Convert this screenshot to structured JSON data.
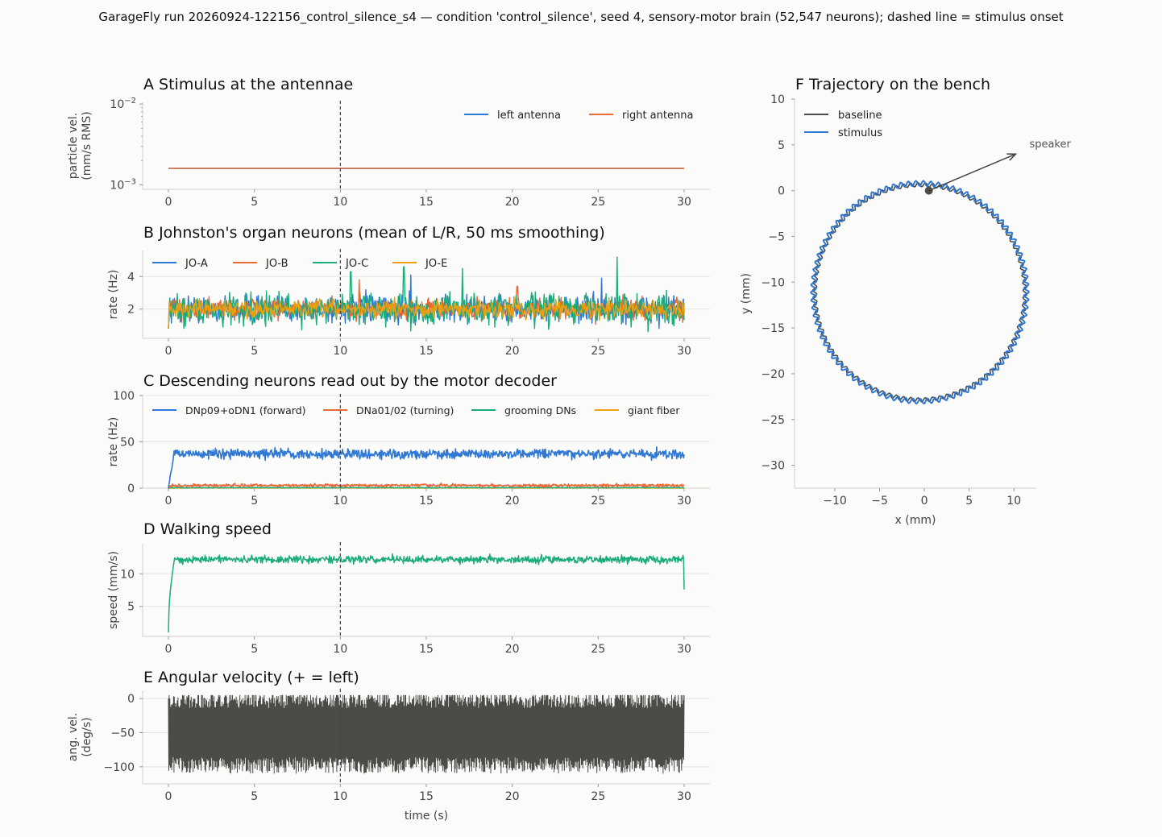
{
  "figure_title": "GarageFly run 20260924-122156_control_silence_s4 — condition 'control_silence', seed 4, sensory-motor brain (52,547 neurons); dashed line = stimulus onset",
  "colors": {
    "blue": "#2f78d4",
    "orange": "#e8693a",
    "green": "#1aad7a",
    "amber": "#eaa010",
    "dark": "#4d4b47",
    "grid": "#e4e4e4",
    "axis": "#d0d0d0",
    "onset": "#444444"
  },
  "chart_data": [
    {
      "id": "A",
      "type": "line",
      "title": "A  Stimulus at the antennae",
      "ylabel": [
        "particle vel.",
        "(mm/s RMS)"
      ],
      "yscale": "log",
      "ylim": [
        0.00088,
        0.0105
      ],
      "ytick_labels": [
        {
          "base": "10",
          "exp": "−2",
          "v": 0.01
        },
        {
          "base": "10",
          "exp": "−3",
          "v": 0.001
        }
      ],
      "xlim": [
        -1.5,
        31.5
      ],
      "xticks": [
        0,
        5,
        10,
        15,
        20,
        25,
        30
      ],
      "onset": 10,
      "legend": {
        "placement": "top-right",
        "columns": 2
      },
      "series": [
        {
          "name": "left antenna",
          "color": "#2f78d4",
          "x": [
            0,
            30
          ],
          "y": [
            0.0016,
            0.0016
          ]
        },
        {
          "name": "right antenna",
          "color": "#e8693a",
          "x": [
            0,
            30
          ],
          "y": [
            0.0016,
            0.0016
          ]
        }
      ]
    },
    {
      "id": "B",
      "type": "line",
      "title": "B  Johnston's organ neurons (mean of L/R, 50 ms smoothing)",
      "ylabel": [
        "rate (Hz)"
      ],
      "ylim": [
        0.2,
        5.6
      ],
      "yticks": [
        2,
        4
      ],
      "xlim": [
        -1.5,
        31.5
      ],
      "xticks": [
        0,
        5,
        10,
        15,
        20,
        25,
        30
      ],
      "onset": 10,
      "legend": {
        "placement": "top-left",
        "columns": 4
      },
      "series": [
        {
          "name": "JO-A",
          "color": "#2f78d4",
          "mean": 2.0,
          "noise": 0.8,
          "spikes": [
            [
              14.1,
              4.1
            ],
            [
              25.2,
              3.9
            ]
          ]
        },
        {
          "name": "JO-B",
          "color": "#e8693a",
          "mean": 2.0,
          "noise": 0.6,
          "spikes": [
            [
              11.1,
              3.8
            ],
            [
              20.3,
              3.4
            ]
          ]
        },
        {
          "name": "JO-C",
          "color": "#1aad7a",
          "mean": 2.0,
          "noise": 0.9,
          "spikes": [
            [
              26.1,
              5.2
            ],
            [
              13.7,
              4.6
            ],
            [
              10.6,
              4.3
            ],
            [
              17.1,
              4.5
            ]
          ]
        },
        {
          "name": "JO-E",
          "color": "#eaa010",
          "mean": 2.0,
          "noise": 0.5,
          "spikes": []
        }
      ]
    },
    {
      "id": "C",
      "type": "line",
      "title": "C  Descending neurons read out by the motor decoder",
      "ylabel": [
        "rate (Hz)"
      ],
      "ylim": [
        0,
        100
      ],
      "yticks": [
        0,
        50,
        100
      ],
      "xlim": [
        -1.5,
        31.5
      ],
      "xticks": [
        0,
        5,
        10,
        15,
        20,
        25,
        30
      ],
      "onset": 10,
      "legend": {
        "placement": "top-left",
        "columns": 4
      },
      "series": [
        {
          "name": "DNp09+oDN1 (forward)",
          "color": "#2f78d4",
          "mean": 37,
          "noise": 5,
          "rise": 0.3
        },
        {
          "name": "DNa01/02 (turning)",
          "color": "#e8693a",
          "mean": 3,
          "noise": 1.5,
          "rise": 0.2
        },
        {
          "name": "grooming DNs",
          "color": "#1aad7a",
          "mean": 0.5,
          "noise": 0.3,
          "rise": 0.2
        },
        {
          "name": "giant fiber",
          "color": "#eaa010",
          "mean": 0.2,
          "noise": 0.2,
          "rise": 0.2
        }
      ]
    },
    {
      "id": "D",
      "type": "line",
      "title": "D  Walking speed",
      "ylabel": [
        "speed (mm/s)"
      ],
      "ylim": [
        0.4,
        14.6
      ],
      "yticks": [
        5,
        10
      ],
      "xlim": [
        -1.5,
        31.5
      ],
      "xticks": [
        0,
        5,
        10,
        15,
        20,
        25,
        30
      ],
      "onset": 10,
      "series": [
        {
          "name": "speed",
          "color": "#1aad7a",
          "mean": 12.2,
          "noise": 0.8,
          "start": 1.0,
          "end": 7.6
        }
      ]
    },
    {
      "id": "E",
      "type": "line",
      "title": "E  Angular velocity (+ = left)",
      "ylabel": [
        "ang. vel.",
        "(deg/s)"
      ],
      "xlabel": "time (s)",
      "ylim": [
        -125,
        12
      ],
      "yticks": [
        0,
        -50,
        -100
      ],
      "ytick_labels": [
        "0",
        "−50",
        "−100"
      ],
      "xlim": [
        -1.5,
        31.5
      ],
      "xticks": [
        0,
        5,
        10,
        15,
        20,
        25,
        30
      ],
      "onset": 10,
      "series": [
        {
          "name": "angular velocity",
          "color": "#4d4b47",
          "center": -50,
          "amp": 60
        }
      ]
    },
    {
      "id": "F",
      "type": "line",
      "title": "F  Trajectory on the bench",
      "xlabel": "x (mm)",
      "ylabel": [
        "y (mm)"
      ],
      "xlim": [
        -14.5,
        12.5
      ],
      "ylim": [
        -32.5,
        10
      ],
      "xticks": [
        -10,
        -5,
        0,
        5,
        10
      ],
      "xtick_labels": [
        "−10",
        "−5",
        "0",
        "5",
        "10"
      ],
      "yticks": [
        10,
        5,
        0,
        -5,
        -10,
        -15,
        -20,
        -25,
        -30
      ],
      "ytick_labels": [
        "10",
        "5",
        "0",
        "−5",
        "−10",
        "−15",
        "−20",
        "−25",
        "−30"
      ],
      "legend": {
        "placement": "top-left",
        "columns": 1
      },
      "circle": {
        "cx": -0.5,
        "cy": -11.1,
        "r": 11.8
      },
      "series": [
        {
          "name": "baseline",
          "color": "#4d4b47"
        },
        {
          "name": "stimulus",
          "color": "#2f78d4"
        }
      ],
      "marker": {
        "x": 0.5,
        "y": 0.0
      },
      "annotation": {
        "text": "speaker",
        "x": 10.2,
        "y": 4.0
      }
    }
  ]
}
